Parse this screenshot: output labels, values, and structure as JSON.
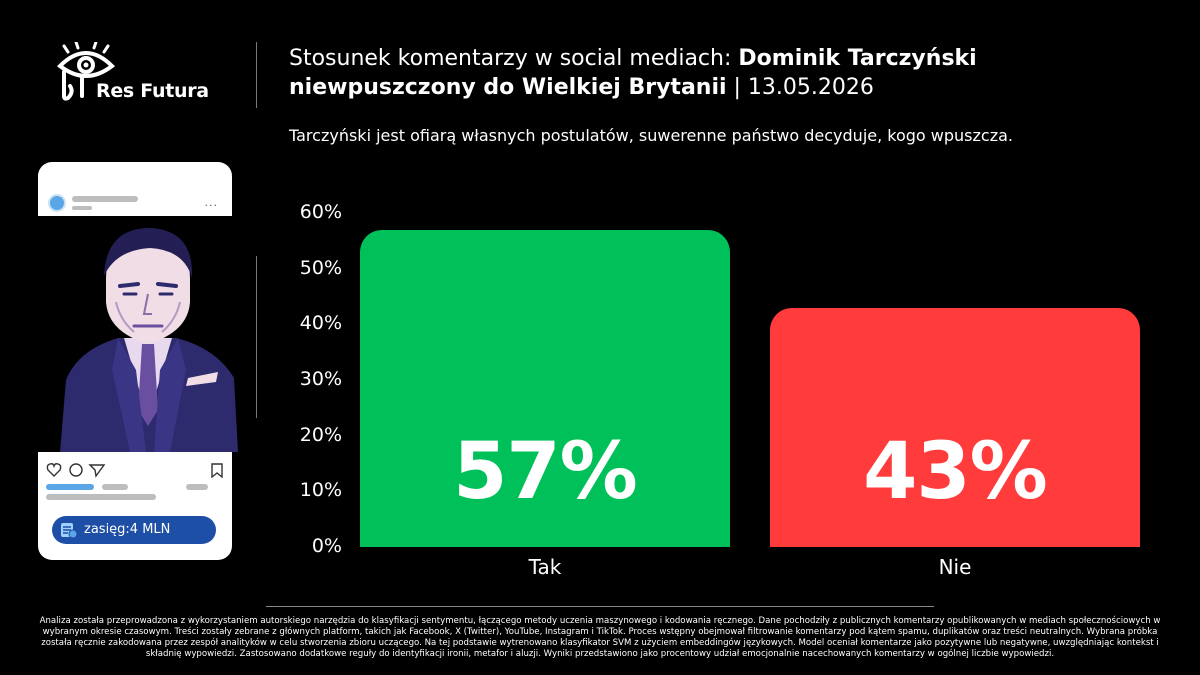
{
  "brand": {
    "name": "Res Futura"
  },
  "header": {
    "title_regular": "Stosunek komentarzy w social mediach: ",
    "title_bold": "Dominik Tarczyński niewpuszczony do Wielkiej Brytanii",
    "title_date": " | 13.05.2026",
    "subtitle": "Tarczyński jest ofiarą własnych postulatów, suwerenne państwo decyduje, kogo wpuszcza."
  },
  "post_card": {
    "reach_label": "zasięg:4 MLN",
    "menu_dots": "..."
  },
  "chart_data": {
    "type": "bar",
    "categories": [
      "Tak",
      "Nie"
    ],
    "values": [
      57,
      43
    ],
    "value_labels": [
      "57%",
      "43%"
    ],
    "bar_colors": [
      "#00c05a",
      "#ff3b3b"
    ],
    "ylim": [
      0,
      60
    ],
    "yticks": [
      "0%",
      "10%",
      "20%",
      "30%",
      "40%",
      "50%",
      "60%"
    ],
    "grid": false
  },
  "footnote": "Analiza została przeprowadzona z wykorzystaniem autorskiego narzędzia do klasyfikacji sentymentu, łączącego metody uczenia maszynowego i kodowania ręcznego. Dane pochodziły z publicznych komentarzy opublikowanych w mediach społecznościowych w wybranym okresie czasowym. Treści zostały zebrane z głównych platform, takich jak Facebook, X (Twitter), YouTube, Instagram i TikTok. Proces wstępny obejmował filtrowanie komentarzy pod kątem spamu, duplikatów oraz treści neutralnych. Wybrana próbka została ręcznie zakodowana przez zespół analityków w celu stworzenia zbioru uczącego. Na tej podstawie wytrenowano klasyfikator SVM z użyciem embeddingów językowych. Model oceniał komentarze jako pozytywne lub negatywne, uwzględniając kontekst i składnię wypowiedzi. Zastosowano dodatkowe reguły do identyfikacji ironii, metafor i aluzji. Wyniki przedstawiono jako procentowy udział emocjonalnie nacechowanych komentarzy w ogólnej liczbie wypowiedzi."
}
